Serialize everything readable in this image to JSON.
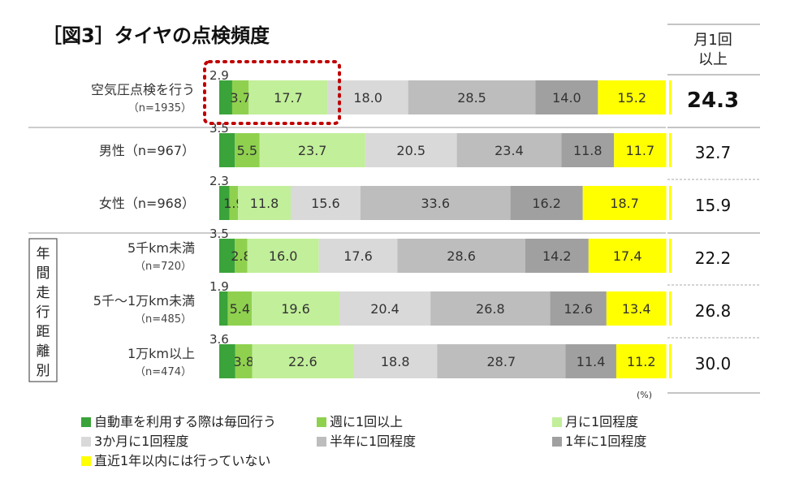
{
  "title": "［図3］タイヤの点検頻度",
  "unit": "(%)",
  "summary_header": [
    "月1回",
    "以上"
  ],
  "legend_colors": [
    "#3aa33a",
    "#8fd14f",
    "#c2ef9a",
    "#d9d9d9",
    "#bdbdbd",
    "#a0a0a0",
    "#ffff00"
  ],
  "chart_data": {
    "type": "bar",
    "orientation": "horizontal",
    "stacked": true,
    "percent": true,
    "categories": [
      "空気圧点検を行う（n=1935）",
      "男性（n=967）",
      "女性（n=968）",
      "5千km未満（n=720）",
      "5千～1万km未満（n=485）",
      "1万km以上（n=474）"
    ],
    "category_labels": [
      [
        "空気圧点検を行う",
        "（n=1935）"
      ],
      [
        "男性（n=967）"
      ],
      [
        "女性（n=968）"
      ],
      [
        "5千km未満",
        "（n=720）"
      ],
      [
        "5千～1万km未満",
        "（n=485）"
      ],
      [
        "1万km以上",
        "（n=474）"
      ]
    ],
    "group_label": "年間走行距離別",
    "series": [
      {
        "name": "自動車を利用する際は毎回行う",
        "values": [
          2.9,
          3.5,
          2.3,
          3.5,
          1.9,
          3.6
        ]
      },
      {
        "name": "週に1回以上",
        "values": [
          3.7,
          5.5,
          1.9,
          2.8,
          5.4,
          3.8
        ]
      },
      {
        "name": "月に1回程度",
        "values": [
          17.7,
          23.7,
          11.8,
          16.0,
          19.6,
          22.6
        ]
      },
      {
        "name": "3か月に1回程度",
        "values": [
          18.0,
          20.5,
          15.6,
          17.6,
          20.4,
          18.8
        ]
      },
      {
        "name": "半年に1回程度",
        "values": [
          28.5,
          23.4,
          33.6,
          28.6,
          26.8,
          28.7
        ]
      },
      {
        "name": "1年に1回程度",
        "values": [
          14.0,
          11.8,
          16.2,
          14.2,
          12.6,
          11.4
        ]
      },
      {
        "name": "直近1年以内には行っていない",
        "values": [
          15.2,
          11.7,
          18.7,
          17.4,
          13.4,
          11.2
        ]
      }
    ],
    "summary": {
      "values": [
        "24.3",
        "32.7",
        "15.9",
        "22.2",
        "26.8",
        "30.0"
      ]
    },
    "xlim": [
      0,
      100
    ],
    "highlight": "dotted red box around first row's first three segments"
  }
}
